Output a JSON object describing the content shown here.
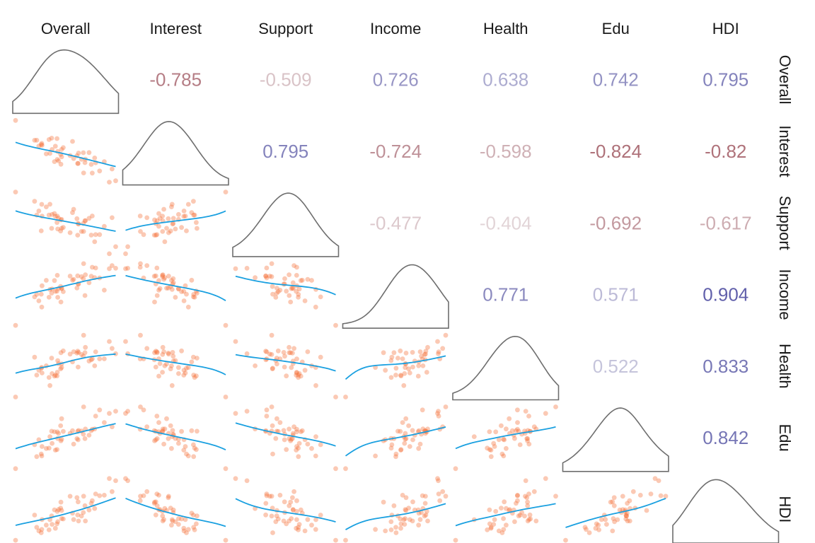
{
  "chart_data": {
    "type": "scatter-matrix",
    "variables": [
      "Overall",
      "Interest",
      "Support",
      "Income",
      "Health",
      "Edu",
      "HDI"
    ],
    "correlations": [
      {
        "row": "Overall",
        "col": "Interest",
        "value": "-0.785"
      },
      {
        "row": "Overall",
        "col": "Support",
        "value": "-0.509"
      },
      {
        "row": "Overall",
        "col": "Income",
        "value": "0.726"
      },
      {
        "row": "Overall",
        "col": "Health",
        "value": "0.638"
      },
      {
        "row": "Overall",
        "col": "Edu",
        "value": "0.742"
      },
      {
        "row": "Overall",
        "col": "HDI",
        "value": "0.795"
      },
      {
        "row": "Interest",
        "col": "Support",
        "value": "0.795"
      },
      {
        "row": "Interest",
        "col": "Income",
        "value": "-0.724"
      },
      {
        "row": "Interest",
        "col": "Health",
        "value": "-0.598"
      },
      {
        "row": "Interest",
        "col": "Edu",
        "value": "-0.824"
      },
      {
        "row": "Interest",
        "col": "HDI",
        "value": "-0.82"
      },
      {
        "row": "Support",
        "col": "Income",
        "value": "-0.477"
      },
      {
        "row": "Support",
        "col": "Health",
        "value": "-0.404"
      },
      {
        "row": "Support",
        "col": "Edu",
        "value": "-0.692"
      },
      {
        "row": "Support",
        "col": "HDI",
        "value": "-0.617"
      },
      {
        "row": "Income",
        "col": "Health",
        "value": "0.771"
      },
      {
        "row": "Income",
        "col": "Edu",
        "value": "0.571"
      },
      {
        "row": "Income",
        "col": "HDI",
        "value": "0.904"
      },
      {
        "row": "Health",
        "col": "Edu",
        "value": "0.522"
      },
      {
        "row": "Health",
        "col": "HDI",
        "value": "0.833"
      },
      {
        "row": "Edu",
        "col": "HDI",
        "value": "0.842"
      }
    ],
    "diagonal": "density",
    "lower_panels": "scatter with smooth fit",
    "upper_panels": "correlation coefficient",
    "colors": {
      "points": "#f4713a",
      "smooth_line": "#1aa0e0",
      "density_line": "#6e6e6e",
      "positive_strong": "#3d3d9a",
      "negative_strong": "#8b2e3a",
      "neutral": "#f0eef0"
    }
  }
}
